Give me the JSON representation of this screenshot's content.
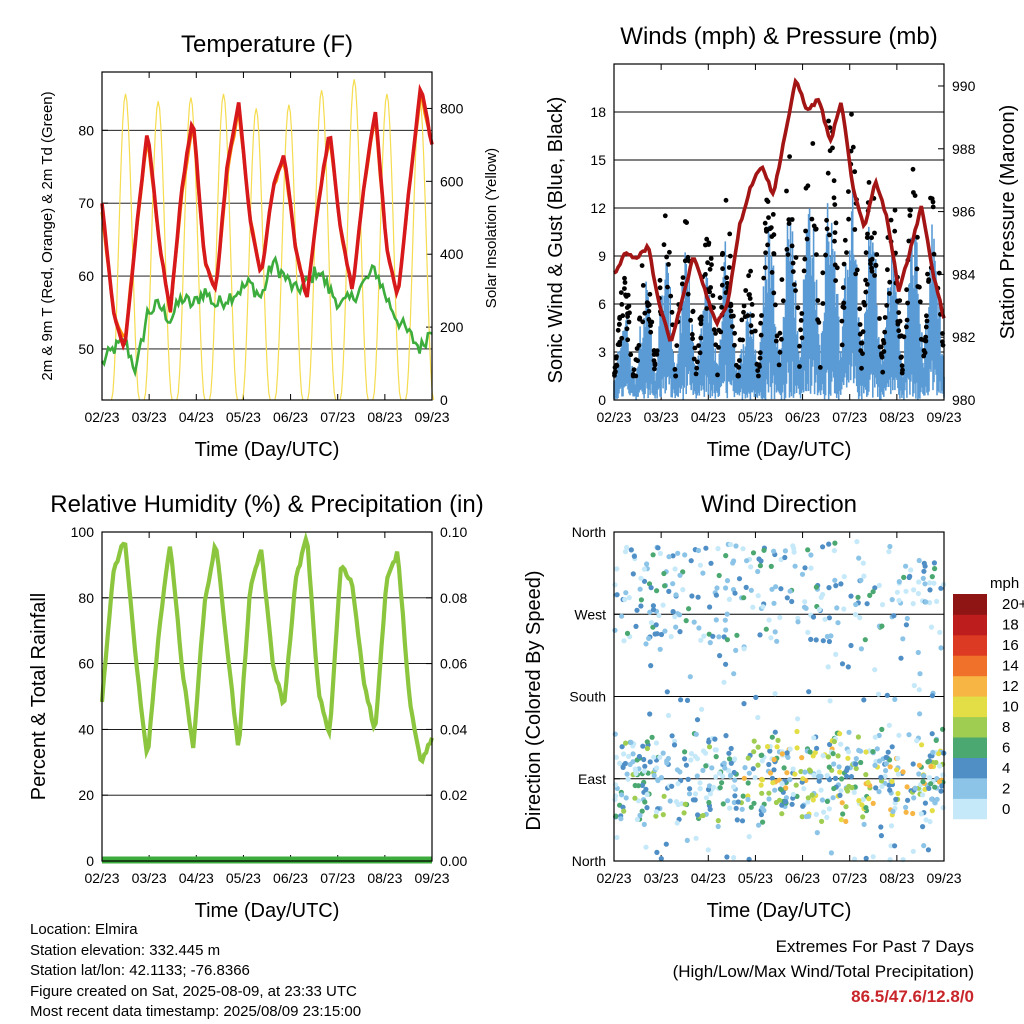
{
  "colors": {
    "temp_2m": "#ff8c00",
    "temp_9m": "#d7191c",
    "dewpoint": "#3cac3c",
    "solar": "#f5dc50",
    "wind": "#5a9bd5",
    "gust": "#000000",
    "pressure": "#a31515",
    "rh": "#8cc63f",
    "precip": "#3cac3c"
  },
  "chart_data": [
    {
      "type": "line",
      "title": "Temperature (F)",
      "xlabel": "Time (Day/UTC)",
      "ylabel": "2m & 9m T (Red, Orange) & 2m Td (Green)",
      "ylabel_right": "Solar Insolation (Yellow)",
      "x_ticks": [
        "02/23",
        "03/23",
        "04/23",
        "05/23",
        "06/23",
        "07/23",
        "08/23",
        "09/23"
      ],
      "ylim": [
        43,
        88
      ],
      "y_ticks": [
        50,
        60,
        70,
        80
      ],
      "ylim_right": [
        0,
        900
      ],
      "y_ticks_right": [
        0,
        200,
        400,
        600,
        800
      ],
      "grid": "horizontal",
      "series": [
        {
          "name": "9m T",
          "axis": "left",
          "color": "#d7191c",
          "values": [
            70,
            55,
            50,
            66,
            80,
            65,
            55,
            72,
            82,
            62,
            58,
            75,
            84,
            68,
            60,
            72,
            77,
            64,
            57,
            70,
            80,
            66,
            58,
            72,
            83,
            64,
            57,
            72,
            86,
            78
          ]
        },
        {
          "name": "2m T",
          "axis": "left",
          "color": "#ff8c00",
          "values": [
            69,
            55,
            51,
            66,
            79,
            65,
            55,
            71,
            81,
            62,
            58,
            74,
            83,
            68,
            60,
            72,
            76,
            64,
            57,
            70,
            79,
            66,
            58,
            72,
            82,
            64,
            57,
            72,
            85,
            78
          ]
        },
        {
          "name": "2m Td",
          "axis": "left",
          "color": "#3cac3c",
          "values": [
            48,
            50,
            51,
            47,
            55,
            56,
            54,
            57,
            56,
            58,
            56,
            57,
            58,
            59,
            57,
            62,
            60,
            58,
            59,
            61,
            58,
            56,
            57,
            59,
            61,
            57,
            54,
            52,
            50,
            53
          ]
        },
        {
          "name": "Solar Insolation",
          "axis": "right",
          "color": "#f5dc50",
          "peaks": [
            840,
            820,
            830,
            840,
            800,
            810,
            850,
            880,
            840,
            830
          ]
        }
      ]
    },
    {
      "type": "scatter",
      "title": "Winds (mph) & Pressure (mb)",
      "xlabel": "Time (Day/UTC)",
      "ylabel": "Sonic Wind & Gust (Blue, Black)",
      "ylabel_right": "Station Pressure (Maroon)",
      "x_ticks": [
        "02/23",
        "03/23",
        "04/23",
        "05/23",
        "06/23",
        "07/23",
        "08/23",
        "09/23"
      ],
      "ylim": [
        0,
        21
      ],
      "y_ticks": [
        0,
        3,
        6,
        9,
        12,
        15,
        18
      ],
      "ylim_right": [
        980,
        990.7
      ],
      "y_ticks_right": [
        980,
        982,
        984,
        986,
        988,
        990
      ],
      "grid": "horizontal",
      "series": [
        {
          "name": "Gust",
          "color": "#000000",
          "daily_peak": [
            7,
            8,
            11,
            12,
            9,
            13,
            7,
            14,
            15,
            17,
            18,
            17,
            13,
            12,
            15,
            12
          ]
        },
        {
          "name": "Sonic Wind",
          "color": "#5a9bd5",
          "daily_peak": [
            5,
            6,
            8,
            9,
            7,
            10,
            5,
            11,
            12,
            13,
            13,
            13,
            10,
            9,
            12,
            9
          ]
        },
        {
          "name": "Station Pressure",
          "axis": "right",
          "color": "#a31515",
          "values": [
            984,
            984.7,
            984.5,
            984.9,
            983,
            981.8,
            983.2,
            984.6,
            983.5,
            982.4,
            983.1,
            985.5,
            986.8,
            987.5,
            986.5,
            988.4,
            990.2,
            989.2,
            989.6,
            988.2,
            989.5,
            986.7,
            985.5,
            987,
            985.8,
            983.5,
            984.7,
            986.2,
            984.1,
            982.6
          ]
        }
      ]
    },
    {
      "type": "line",
      "title": "Relative Humidity (%) & Precipitation (in)",
      "xlabel": "Time (Day/UTC)",
      "ylabel": "Percent & Total Rainfall",
      "x_ticks": [
        "02/23",
        "03/23",
        "04/23",
        "05/23",
        "06/23",
        "07/23",
        "08/23",
        "09/23"
      ],
      "ylim": [
        0,
        100
      ],
      "y_ticks": [
        0,
        20,
        40,
        60,
        80,
        100
      ],
      "ylim_right": [
        0,
        0.1
      ],
      "y_ticks_right": [
        "0.00",
        "0.02",
        "0.04",
        "0.06",
        "0.08",
        "0.10"
      ],
      "grid": "horizontal",
      "series": [
        {
          "name": "Relative Humidity",
          "color": "#8cc63f",
          "values": [
            48,
            88,
            98,
            60,
            31,
            70,
            97,
            60,
            34,
            78,
            97,
            65,
            33,
            82,
            95,
            60,
            47,
            85,
            99,
            52,
            38,
            90,
            84,
            55,
            39,
            85,
            94,
            50,
            30,
            37
          ]
        },
        {
          "name": "Total Precipitation",
          "color": "#3cac3c",
          "values": [
            0,
            0
          ]
        }
      ]
    },
    {
      "type": "scatter",
      "title": "Wind Direction",
      "xlabel": "Time (Day/UTC)",
      "ylabel": "Direction (Colored By Speed)",
      "x_ticks": [
        "02/23",
        "03/23",
        "04/23",
        "05/23",
        "06/23",
        "07/23",
        "08/23",
        "09/23"
      ],
      "y_ticks": [
        "North",
        "East",
        "South",
        "West",
        "North"
      ],
      "grid": "horizontal",
      "colorbar": {
        "unit": "mph",
        "labels": [
          "0",
          "2",
          "4",
          "6",
          "8",
          "10",
          "12",
          "14",
          "16",
          "18",
          "20+"
        ],
        "colors": [
          "#c6e9f9",
          "#8cc4e8",
          "#4f8fc6",
          "#4aa870",
          "#9fcd52",
          "#e3de45",
          "#f7b544",
          "#f0712a",
          "#dc3a22",
          "#bd1d1d",
          "#8f1515"
        ]
      }
    }
  ],
  "info": {
    "location": "Location: Elmira",
    "elevation": "Station elevation: 332.445 m",
    "latlon": "Station lat/lon: 42.1133; -76.8366",
    "created": "Figure created on Sat, 2025-08-09, at 23:33 UTC",
    "recent": "Most recent data timestamp: 2025/08/09 23:15:00"
  },
  "extremes": {
    "title": "Extremes For Past 7 Days",
    "subtitle": "(High/Low/Max Wind/Total Precipitation)",
    "values": "86.5/47.6/12.8/0"
  }
}
